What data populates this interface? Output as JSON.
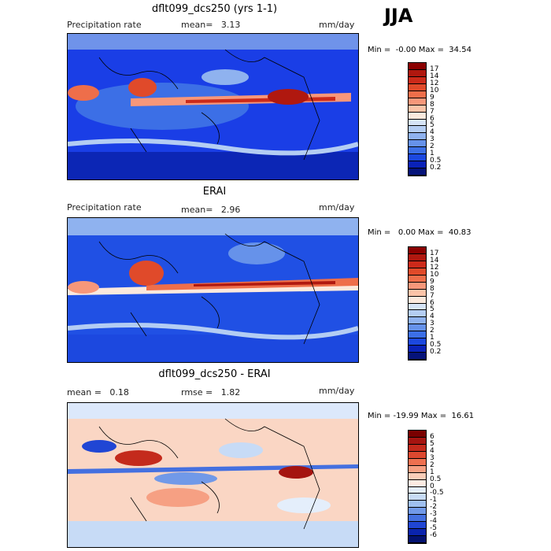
{
  "season": "JJA",
  "panels": [
    {
      "title": "dflt099_dcs250 (yrs 1-1)",
      "left_label": "Precipitation rate",
      "mid_label": "mean=   3.13",
      "unit": "mm/day",
      "minmax": "Min =  -0.00 Max =  34.54",
      "colorbar": {
        "levels": [
          "17",
          "14",
          "12",
          "10",
          "9",
          "8",
          "7",
          "6",
          "5",
          "4",
          "3",
          "2",
          "1",
          "0.5",
          "0.2"
        ],
        "colors": [
          "#8b0000",
          "#b0180f",
          "#cc2a1a",
          "#e04a2a",
          "#ee6e4a",
          "#f7977a",
          "#fbc3a8",
          "#fbe9dd",
          "#d6e4f7",
          "#b4cdf3",
          "#8fb2ef",
          "#6692ea",
          "#3c6fe6",
          "#1c48df",
          "#0a22b8",
          "#05137a"
        ]
      }
    },
    {
      "title": "ERAI",
      "left_label": "Precipitation rate",
      "mid_label": "mean=   2.96",
      "unit": "mm/day",
      "minmax": "Min =   0.00 Max =  40.83",
      "colorbar": {
        "levels": [
          "17",
          "14",
          "12",
          "10",
          "9",
          "8",
          "7",
          "6",
          "5",
          "4",
          "3",
          "2",
          "1",
          "0.5",
          "0.2"
        ],
        "colors": [
          "#8b0000",
          "#b0180f",
          "#cc2a1a",
          "#e04a2a",
          "#ee6e4a",
          "#f7977a",
          "#fbc3a8",
          "#fbe9dd",
          "#d6e4f7",
          "#b4cdf3",
          "#8fb2ef",
          "#6692ea",
          "#3c6fe6",
          "#1c48df",
          "#0a22b8",
          "#05137a"
        ]
      }
    },
    {
      "title": "dflt099_dcs250 - ERAI",
      "left_label": "mean =   0.18",
      "mid_label": "rmse =   1.82",
      "unit": "mm/day",
      "minmax": "Min = -19.99 Max =  16.61",
      "colorbar": {
        "levels": [
          "6",
          "5",
          "4",
          "3",
          "2",
          "1",
          "0.5",
          "0",
          "-0.5",
          "-1",
          "-2",
          "-3",
          "-4",
          "-5",
          "-6"
        ],
        "colors": [
          "#7a0000",
          "#a51410",
          "#c42a1c",
          "#dc4830",
          "#ee7050",
          "#f6a083",
          "#fbcdb8",
          "#fdebe2",
          "#e4eefb",
          "#c7dbf6",
          "#a0c0f0",
          "#7199e8",
          "#4470e0",
          "#2046d4",
          "#0a24ae",
          "#031270"
        ]
      }
    }
  ],
  "chart_data": {
    "type": "heatmap",
    "title": "JJA",
    "panels": [
      {
        "title": "dflt099_dcs250 (yrs 1-1)",
        "variable": "Precipitation rate",
        "unit": "mm/day",
        "mean": 3.13,
        "min": -0.0,
        "max": 34.54,
        "contour_levels": [
          0.2,
          0.5,
          1,
          2,
          3,
          4,
          5,
          6,
          7,
          8,
          9,
          10,
          12,
          14,
          17
        ]
      },
      {
        "title": "ERAI",
        "variable": "Precipitation rate",
        "unit": "mm/day",
        "mean": 2.96,
        "min": 0.0,
        "max": 40.83,
        "contour_levels": [
          0.2,
          0.5,
          1,
          2,
          3,
          4,
          5,
          6,
          7,
          8,
          9,
          10,
          12,
          14,
          17
        ]
      },
      {
        "title": "dflt099_dcs250 - ERAI",
        "unit": "mm/day",
        "mean": 0.18,
        "rmse": 1.82,
        "min": -19.99,
        "max": 16.61,
        "contour_levels": [
          -6,
          -5,
          -4,
          -3,
          -2,
          -1,
          -0.5,
          0,
          0.5,
          1,
          2,
          3,
          4,
          5,
          6
        ]
      }
    ]
  }
}
